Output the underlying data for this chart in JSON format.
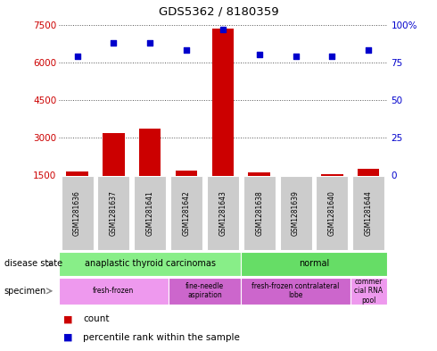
{
  "title": "GDS5362 / 8180359",
  "samples": [
    "GSM1281636",
    "GSM1281637",
    "GSM1281641",
    "GSM1281642",
    "GSM1281643",
    "GSM1281638",
    "GSM1281639",
    "GSM1281640",
    "GSM1281644"
  ],
  "counts": [
    1650,
    3200,
    3350,
    1700,
    7350,
    1620,
    1480,
    1560,
    1750
  ],
  "percentiles": [
    79,
    88,
    88,
    83,
    97,
    80,
    79,
    79,
    83
  ],
  "ylim_left": [
    1500,
    7500
  ],
  "ylim_right": [
    0,
    100
  ],
  "yticks_left": [
    1500,
    3000,
    4500,
    6000,
    7500
  ],
  "yticks_right": [
    0,
    25,
    50,
    75,
    100
  ],
  "bar_color": "#cc0000",
  "dot_color": "#0000cc",
  "disease_state": [
    {
      "label": "anaplastic thyroid carcinomas",
      "start": 0,
      "end": 5,
      "color": "#88ee88"
    },
    {
      "label": "normal",
      "start": 5,
      "end": 9,
      "color": "#66dd66"
    }
  ],
  "specimen": [
    {
      "label": "fresh-frozen",
      "start": 0,
      "end": 3,
      "color": "#ee99ee"
    },
    {
      "label": "fine-needle\naspiration",
      "start": 3,
      "end": 5,
      "color": "#cc66cc"
    },
    {
      "label": "fresh-frozen contralateral\nlobe",
      "start": 5,
      "end": 8,
      "color": "#cc66cc"
    },
    {
      "label": "commer\ncial RNA\npool",
      "start": 8,
      "end": 9,
      "color": "#ee99ee"
    }
  ],
  "left_label_color": "#cc0000",
  "right_label_color": "#0000cc",
  "grid_color": "#555555",
  "bg_color": "#ffffff",
  "label_disease_state": "disease state",
  "label_specimen": "specimen",
  "legend_count": "count",
  "legend_percentile": "percentile rank within the sample",
  "sample_box_color": "#cccccc"
}
